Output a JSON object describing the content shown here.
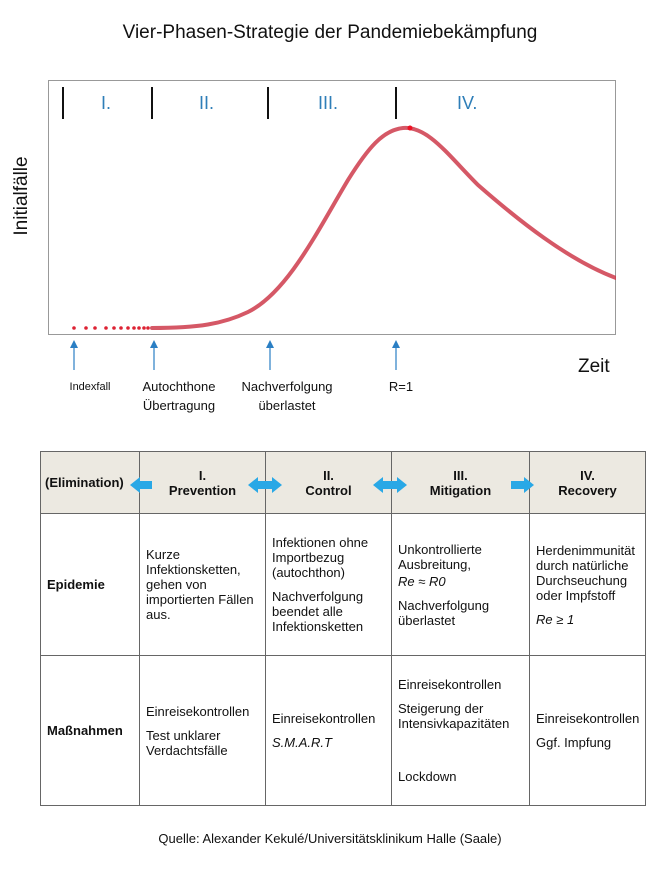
{
  "title": "Vier-Phasen-Strategie der Pandemiebekämpfung",
  "diagram": {
    "y_axis_label": "Initialfälle",
    "x_axis_label": "Zeit",
    "phases": [
      "I.",
      "II.",
      "III.",
      "IV."
    ],
    "markers": [
      {
        "lines": [
          "Indexfall"
        ]
      },
      {
        "lines": [
          "Autochthone",
          "Übertragung"
        ]
      },
      {
        "lines": [
          "Nachverfolgung",
          "überlastet"
        ]
      },
      {
        "lines": [
          "R=1"
        ]
      }
    ],
    "colors": {
      "curve": "#cc3344",
      "phase_text": "#2e7eb8",
      "arrow": "#2a7fc4",
      "double_arrow": "#29a8e6"
    }
  },
  "table": {
    "headers": [
      {
        "line1": "",
        "line2": "(Elimination)"
      },
      {
        "line1": "I.",
        "line2": "Prevention"
      },
      {
        "line1": "II.",
        "line2": "Control"
      },
      {
        "line1": "III.",
        "line2": "Mitigation"
      },
      {
        "line1": "IV.",
        "line2": "Recovery"
      }
    ],
    "rows": [
      {
        "label": "Epidemie",
        "cells": [
          [
            "Kurze Infektionsketten, gehen von importierten Fällen aus."
          ],
          [
            "Infektionen ohne Importbezug (autochthon)",
            "Nachverfolgung beendet alle Infektionsketten"
          ],
          [
            "Unkontrollierte Ausbreitung,",
            "Re ≈ R0",
            "Nachverfolgung überlastet"
          ],
          [
            "Herdenimmunität durch natürliche Durchseuchung oder Impfstoff",
            "Re ≥ 1"
          ]
        ]
      },
      {
        "label": "Maßnahmen",
        "cells": [
          [
            "Einreisekontrollen",
            "Test unklarer Verdachtsfälle"
          ],
          [
            "Einreisekontrollen",
            "S.M.A.R.T"
          ],
          [
            "Einreisekontrollen",
            "Steigerung der Intensivkapazitäten",
            "Lockdown"
          ],
          [
            "Einreisekontrollen",
            "Ggf. Impfung"
          ]
        ]
      }
    ]
  },
  "source": "Quelle: Alexander Kekulé/Universitätsklinikum Halle (Saale)"
}
